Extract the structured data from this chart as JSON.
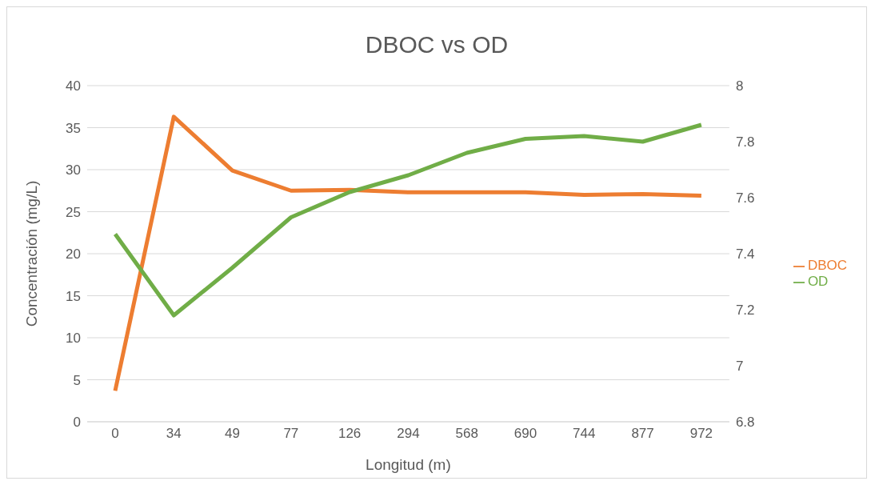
{
  "chart_data": {
    "type": "line",
    "title": "DBOC vs OD",
    "xlabel": "Longitud (m)",
    "ylabel": "Concentración (mg/L)",
    "categories": [
      "0",
      "34",
      "49",
      "77",
      "126",
      "294",
      "568",
      "690",
      "744",
      "877",
      "972"
    ],
    "series": [
      {
        "name": "DBOC",
        "color": "#ed7d31",
        "values": [
          3.7,
          36.3,
          29.9,
          27.5,
          27.6,
          27.3,
          27.3,
          27.3,
          27.0,
          27.1,
          26.9
        ]
      },
      {
        "name": "OD",
        "color": "#70ad47",
        "axis": "y2",
        "values": [
          7.47,
          7.18,
          7.35,
          7.53,
          7.62,
          7.68,
          7.76,
          7.81,
          7.82,
          7.8,
          7.86
        ]
      }
    ],
    "ylim": [
      0,
      40
    ],
    "yticks": [
      0,
      5,
      10,
      15,
      20,
      25,
      30,
      35,
      40
    ],
    "y2lim": [
      6.8,
      8
    ],
    "y2ticks": [
      6.8,
      7,
      7.2,
      7.4,
      7.6,
      7.8,
      8
    ],
    "grid": "y",
    "legend": "right",
    "marker": "none",
    "line_style": "solid"
  }
}
